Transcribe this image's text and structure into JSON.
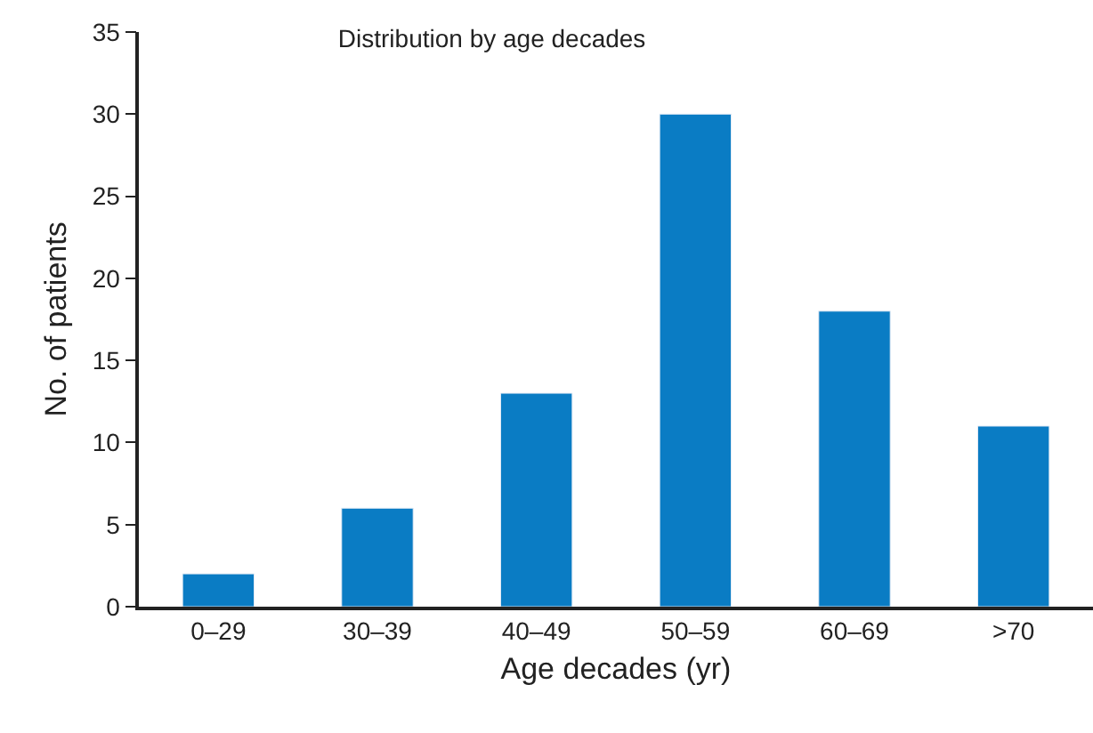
{
  "chart_data": {
    "type": "bar",
    "title": "Distribution by age decades",
    "xlabel": "Age decades (yr)",
    "ylabel": "No. of patients",
    "categories": [
      "0–29",
      "30–39",
      "40–49",
      "50–59",
      "60–69",
      ">70"
    ],
    "values": [
      2,
      6,
      13,
      30,
      18,
      11
    ],
    "color": "#0a7cc4",
    "ylim": [
      0,
      35
    ],
    "yticks": [
      0,
      5,
      10,
      15,
      20,
      25,
      30,
      35
    ]
  }
}
